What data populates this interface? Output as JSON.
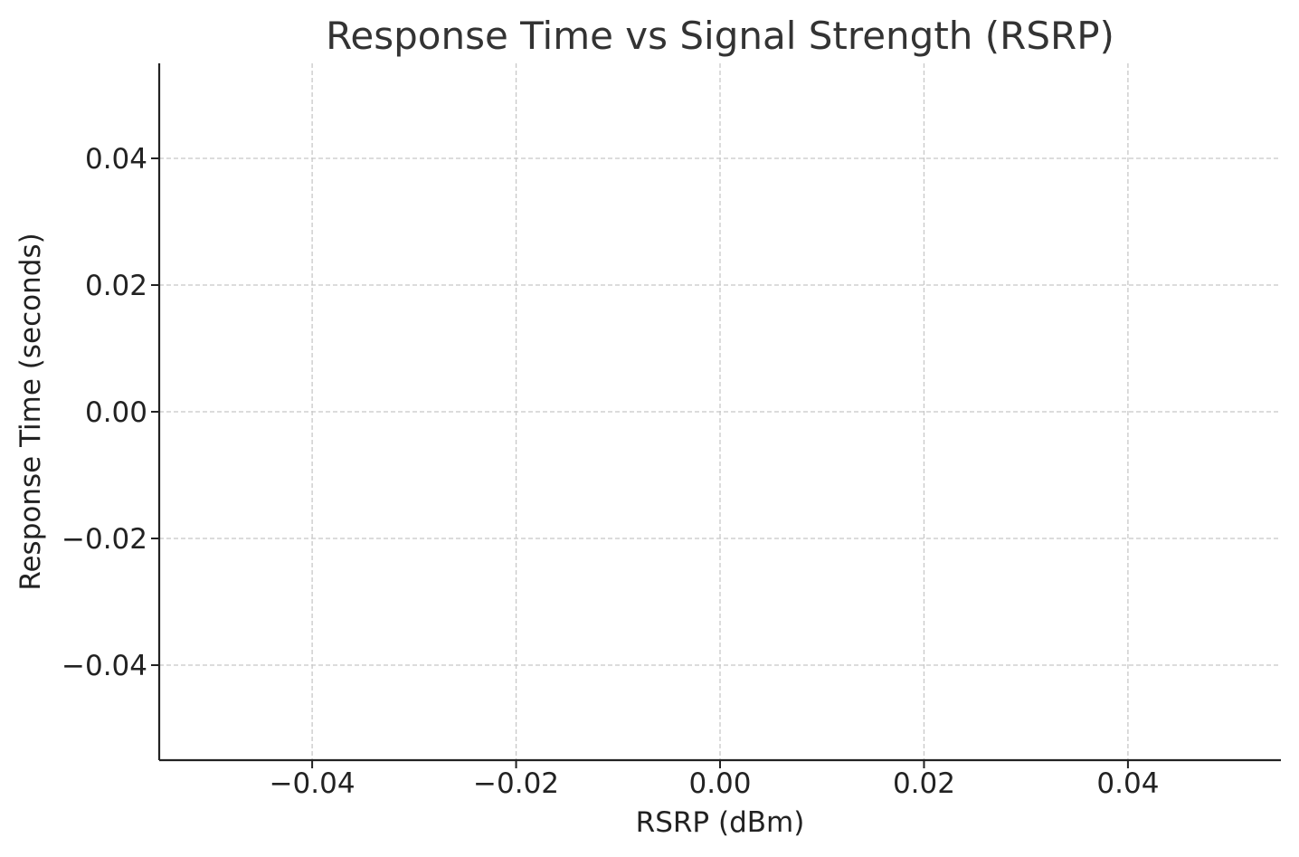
{
  "chart_data": {
    "type": "scatter",
    "title": "Response Time vs Signal Strength (RSRP)",
    "xlabel": "RSRP (dBm)",
    "ylabel": "Response Time (seconds)",
    "xlim": [
      -0.055,
      0.055
    ],
    "ylim": [
      -0.055,
      0.055
    ],
    "xticks": [
      -0.04,
      -0.02,
      0.0,
      0.02,
      0.04
    ],
    "yticks": [
      -0.04,
      -0.02,
      0.0,
      0.02,
      0.04
    ],
    "xtick_labels": [
      "−0.04",
      "−0.02",
      "0.00",
      "0.02",
      "0.04"
    ],
    "ytick_labels": [
      "−0.04",
      "−0.02",
      "0.00",
      "0.02",
      "0.04"
    ],
    "grid": true,
    "series": [
      {
        "x": [],
        "y": []
      }
    ],
    "colors": {
      "axis": "#222222",
      "grid": "#c8c8c8",
      "title": "#333333",
      "point": "#1f77b4"
    }
  }
}
